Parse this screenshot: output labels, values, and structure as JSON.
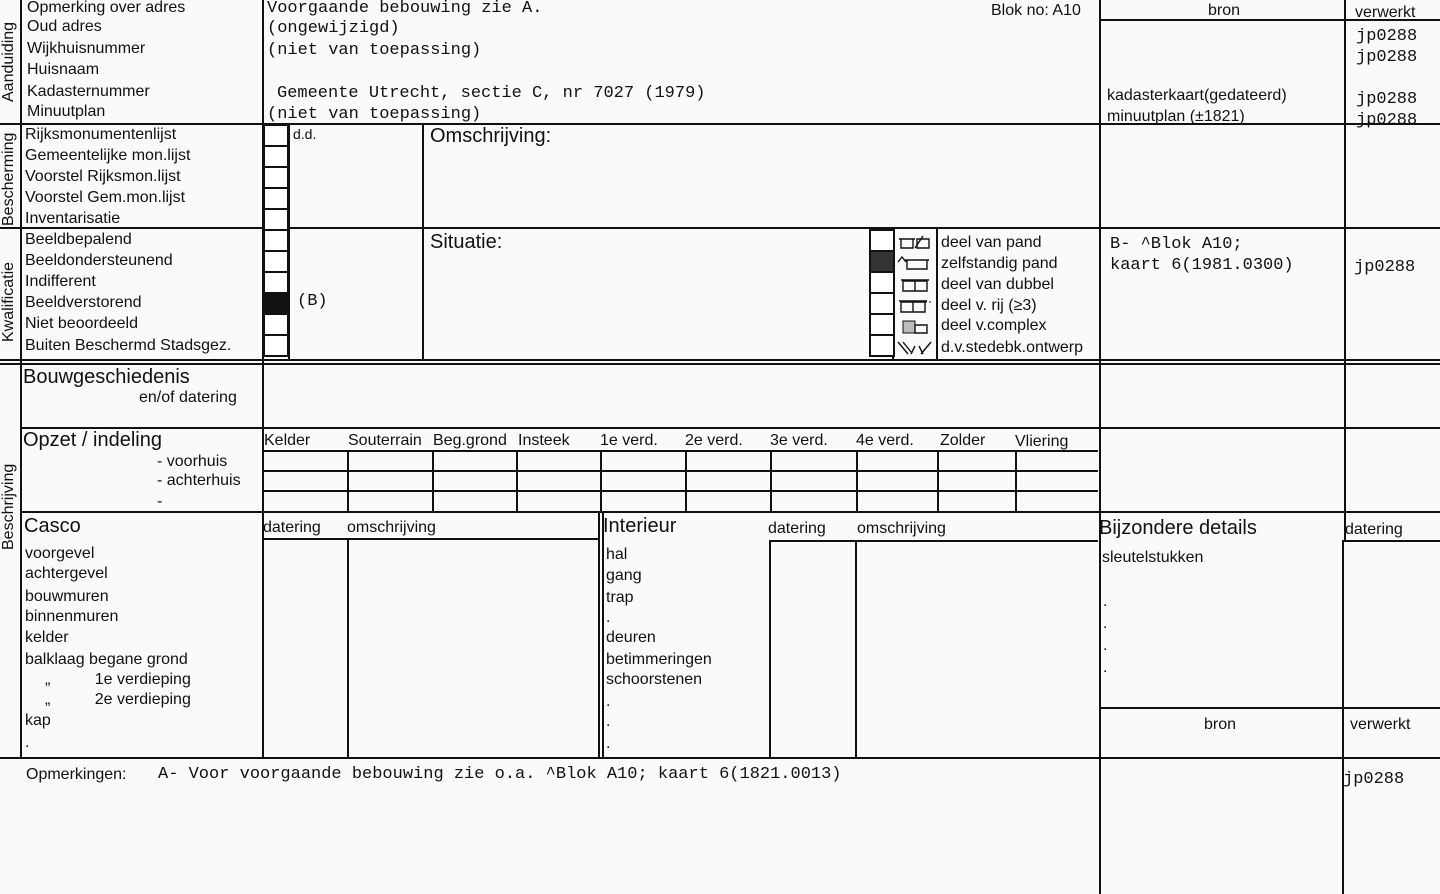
{
  "sections": {
    "aanduiding": "Aanduiding",
    "bescherming": "Bescherming",
    "kwalificatie": "Kwalificatie",
    "beschrijving": "Beschrijving"
  },
  "header": {
    "blok": "Blok no: A10",
    "bron": "bron",
    "verwerkt": "verwerkt"
  },
  "aanduiding": {
    "labels": [
      "Opmerking over adres",
      "Oud adres",
      "Wijkhuisnummer",
      "Huisnaam",
      "Kadasternummer",
      "Minuutplan"
    ],
    "values": [
      "Voorgaande bebouwing zie A.",
      "(ongewijzigd)",
      "(niet van toepassing)",
      "",
      "Gemeente Utrecht,  sectie C, nr 7027 (1979)",
      "(niet van toepassing)"
    ],
    "bron": [
      "",
      "",
      "",
      "",
      "kadasterkaart(gedateerd)",
      "minuutplan (±1821)"
    ],
    "verwerkt": [
      "",
      "jp0288",
      "jp0288",
      "",
      "jp0288",
      "jp0288"
    ]
  },
  "bescherming": {
    "labels": [
      "Rijksmonumentenlijst",
      "Gemeentelijke mon.lijst",
      "Voorstel Rijksmon.lijst",
      "Voorstel Gem.mon.lijst",
      "Inventarisatie"
    ],
    "dd": "d.d.",
    "omschrijving": "Omschrijving:"
  },
  "kwalificatie": {
    "labels": [
      "Beeldbepalend",
      "Beeldondersteunend",
      "Indifferent",
      "Beeldverstorend",
      "Niet  beoordeeld",
      "Buiten Beschermd Stadsgez."
    ],
    "checked_index": 3,
    "mark": "(B)",
    "situatie": "Situatie:",
    "situatie_options": [
      {
        "label": "deel van pand",
        "icon": "split-house-icon",
        "checked": false
      },
      {
        "label": "zelfstandig pand",
        "icon": "detached-house-icon",
        "checked": true
      },
      {
        "label": "deel van dubbel",
        "icon": "semi-detached-icon",
        "checked": false
      },
      {
        "label": "deel v. rij  (≥3)",
        "icon": "row-house-icon",
        "checked": false
      },
      {
        "label": "deel v.complex",
        "icon": "complex-icon",
        "checked": false
      },
      {
        "label": "d.v.stedebk.ontwerp",
        "icon": "urban-design-icon",
        "checked": false
      }
    ],
    "bron": [
      "B- ^Blok A10;",
      "kaart 6(1981.0300)"
    ],
    "verwerkt": "jp0288"
  },
  "bouwgeschiedenis": {
    "title": "Bouwgeschiedenis",
    "sub": "en/of datering"
  },
  "opzet": {
    "title": "Opzet / indeling",
    "rows": [
      "-  voorhuis",
      "-  achterhuis",
      "-"
    ],
    "columns": [
      "Kelder",
      "Souterrain",
      "Beg.grond",
      "Insteek",
      "1e verd.",
      "2e verd.",
      "3e verd.",
      "4e verd.",
      "Zolder",
      "Vliering"
    ]
  },
  "casco": {
    "title": "Casco",
    "datering": "datering",
    "omschrijving": "omschrijving",
    "items": [
      "voorgevel",
      "achtergevel",
      "bouwmuren",
      "binnenmuren",
      "kelder",
      "balklaag begane grond",
      "„          1e verdieping",
      "„          2e verdieping",
      "kap",
      "."
    ]
  },
  "interieur": {
    "title": "Interieur",
    "datering": "datering",
    "omschrijving": "omschrijving",
    "items": [
      "hal",
      "gang",
      "trap",
      ".",
      "deuren",
      "betimmeringen",
      "schoorstenen",
      ".",
      ".",
      "."
    ]
  },
  "bijzondere": {
    "title": "Bijzondere details",
    "datering": "datering",
    "items": [
      "sleutelstukken",
      ".",
      ".",
      ".",
      "."
    ],
    "bron": "bron",
    "verwerkt": "verwerkt"
  },
  "opmerkingen": {
    "label": "Opmerkingen:",
    "text": "A- Voor voorgaande bebouwing zie o.a. ^Blok A10; kaart 6(1821.0013)",
    "verwerkt": "jp0288"
  }
}
